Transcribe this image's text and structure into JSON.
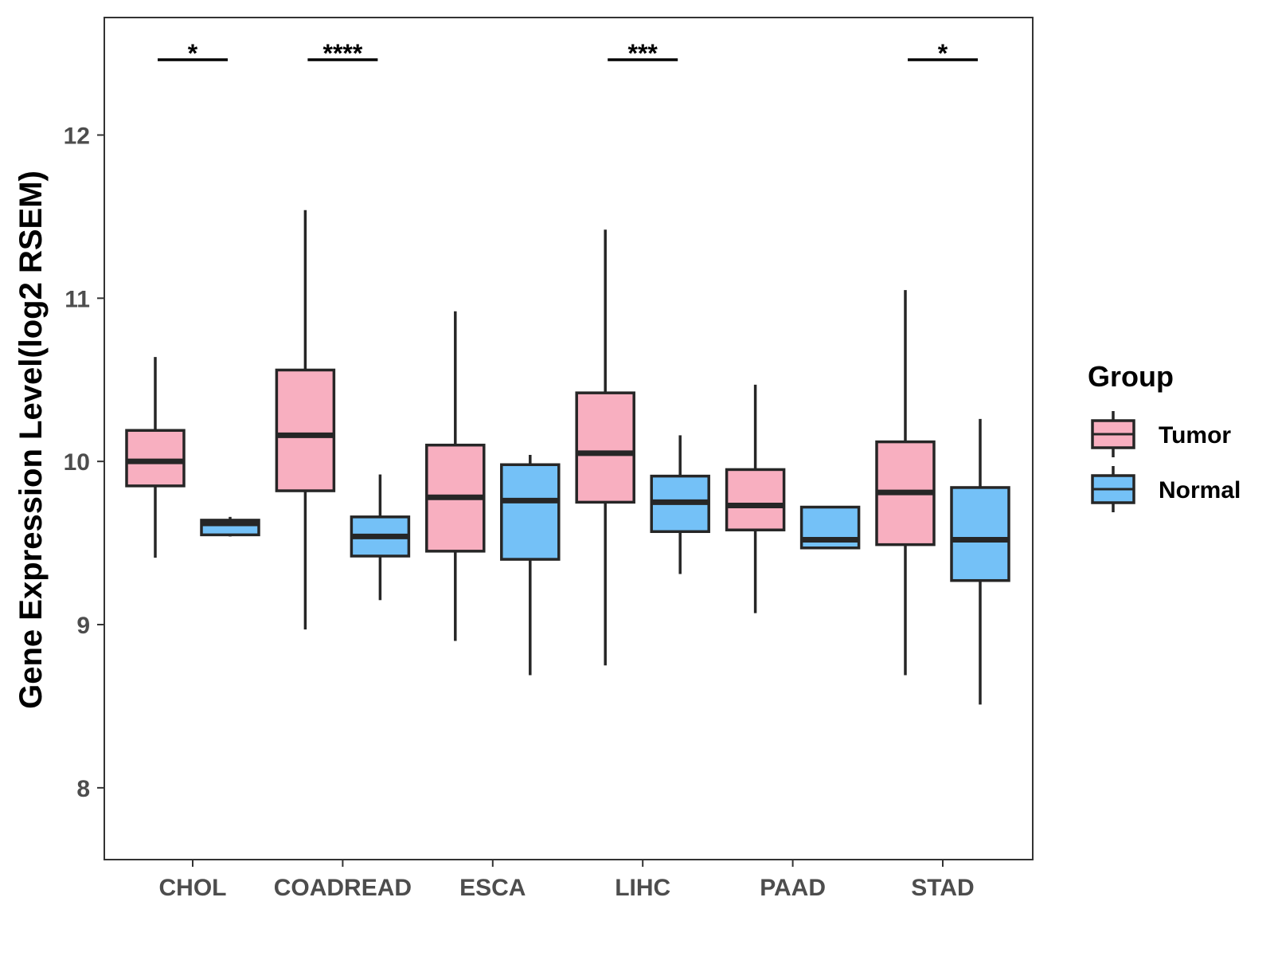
{
  "chart_data": {
    "type": "boxplot",
    "title": "",
    "xlabel": "",
    "ylabel": "Gene Expression Level(log2 RSEM)",
    "ylim": [
      7.56,
      12.72
    ],
    "yticks": [
      8,
      9,
      10,
      11,
      12
    ],
    "grid": false,
    "categories": [
      "CHOL",
      "COADREAD",
      "ESCA",
      "LIHC",
      "PAAD",
      "STAD"
    ],
    "legend": {
      "title": "Group",
      "position": "right",
      "entries": [
        {
          "name": "Tumor",
          "color": "#F8AFC0"
        },
        {
          "name": "Normal",
          "color": "#74C1F7"
        }
      ]
    },
    "series": [
      {
        "name": "Tumor",
        "color": "#F8AFC0",
        "boxes": [
          {
            "category": "CHOL",
            "min": 9.41,
            "q1": 9.85,
            "median": 10.0,
            "q3": 10.19,
            "max": 10.64
          },
          {
            "category": "COADREAD",
            "min": 8.97,
            "q1": 9.82,
            "median": 10.16,
            "q3": 10.56,
            "max": 11.54
          },
          {
            "category": "ESCA",
            "min": 8.9,
            "q1": 9.45,
            "median": 9.78,
            "q3": 10.1,
            "max": 10.92
          },
          {
            "category": "LIHC",
            "min": 8.75,
            "q1": 9.75,
            "median": 10.05,
            "q3": 10.42,
            "max": 11.42
          },
          {
            "category": "PAAD",
            "min": 9.07,
            "q1": 9.58,
            "median": 9.73,
            "q3": 9.95,
            "max": 10.47
          },
          {
            "category": "STAD",
            "min": 8.69,
            "q1": 9.49,
            "median": 9.81,
            "q3": 10.12,
            "max": 11.05
          }
        ]
      },
      {
        "name": "Normal",
        "color": "#74C1F7",
        "boxes": [
          {
            "category": "CHOL",
            "min": 9.54,
            "q1": 9.55,
            "median": 9.62,
            "q3": 9.64,
            "max": 9.66
          },
          {
            "category": "COADREAD",
            "min": 9.15,
            "q1": 9.42,
            "median": 9.54,
            "q3": 9.66,
            "max": 9.92
          },
          {
            "category": "ESCA",
            "min": 8.69,
            "q1": 9.4,
            "median": 9.76,
            "q3": 9.98,
            "max": 10.04
          },
          {
            "category": "LIHC",
            "min": 9.31,
            "q1": 9.57,
            "median": 9.75,
            "q3": 9.91,
            "max": 10.16
          },
          {
            "category": "PAAD",
            "min": 9.47,
            "q1": 9.47,
            "median": 9.52,
            "q3": 9.72,
            "max": 9.72
          },
          {
            "category": "STAD",
            "min": 8.51,
            "q1": 9.27,
            "median": 9.52,
            "q3": 9.84,
            "max": 10.26
          }
        ]
      }
    ],
    "annotations": [
      {
        "category": "CHOL",
        "label": "*"
      },
      {
        "category": "COADREAD",
        "label": "****"
      },
      {
        "category": "LIHC",
        "label": "***"
      },
      {
        "category": "STAD",
        "label": "*"
      }
    ]
  }
}
